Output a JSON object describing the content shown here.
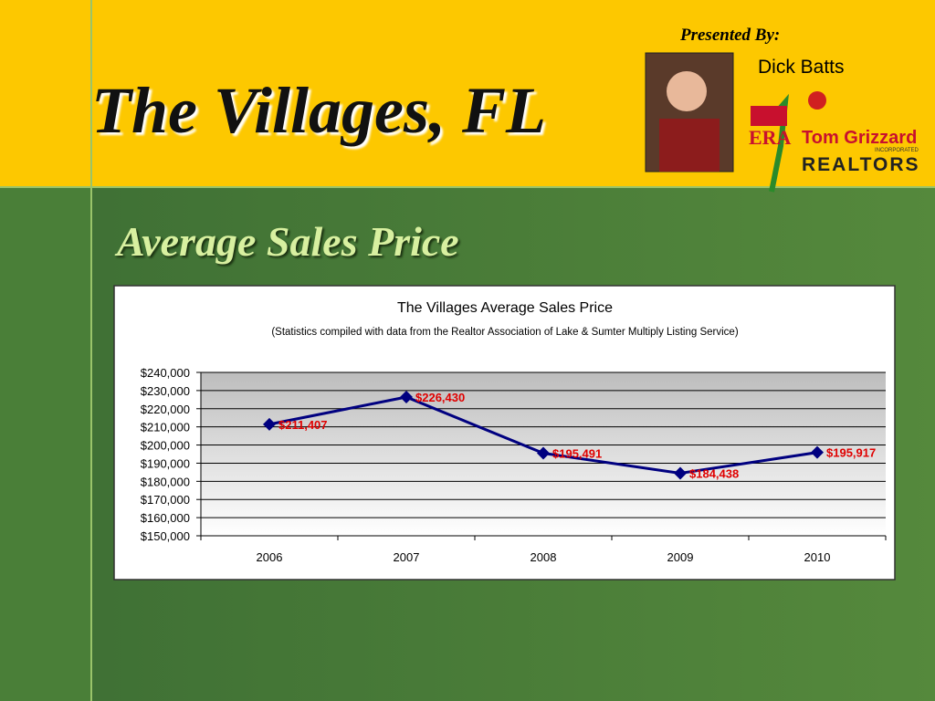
{
  "header": {
    "title": "The Villages, FL",
    "presented_by": "Presented By:",
    "presenter": "Dick Batts",
    "logo": {
      "brand": "ERA",
      "company": "Tom Grizzard",
      "incorporated": "INCORPORATED",
      "realtors": "REALTORS"
    }
  },
  "slide_title": "Average Sales Price",
  "chart_data": {
    "type": "line",
    "title": "The Villages Average Sales Price",
    "subtitle": "(Statistics compiled with data from the Realtor Association of Lake & Sumter Multiply Listing Service)",
    "categories": [
      "2006",
      "2007",
      "2008",
      "2009",
      "2010"
    ],
    "series": [
      {
        "name": "Average Sales Price",
        "color": "#000080",
        "values": [
          211407,
          226430,
          195491,
          184438,
          195917
        ],
        "value_labels": [
          "$211,407",
          "$226,430",
          "$195,491",
          "$184,438",
          "$195,917"
        ]
      }
    ],
    "label_color": "#e00000",
    "ylim": [
      150000,
      240000
    ],
    "yticks": [
      {
        "value": 150000,
        "label": "$150,000"
      },
      {
        "value": 160000,
        "label": "$160,000"
      },
      {
        "value": 170000,
        "label": "$170,000"
      },
      {
        "value": 180000,
        "label": "$180,000"
      },
      {
        "value": 190000,
        "label": "$190,000"
      },
      {
        "value": 200000,
        "label": "$200,000"
      },
      {
        "value": 210000,
        "label": "$210,000"
      },
      {
        "value": 220000,
        "label": "$220,000"
      },
      {
        "value": 230000,
        "label": "$230,000"
      },
      {
        "value": 240000,
        "label": "$240,000"
      }
    ],
    "grid": true
  }
}
